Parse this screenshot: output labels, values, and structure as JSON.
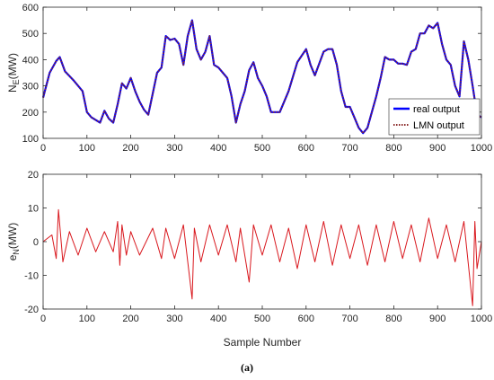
{
  "chart_data": [
    {
      "type": "line",
      "ylabel_main": "N",
      "ylabel_sub": "E",
      "ylabel_unit": "(MW)",
      "xlim": [
        0,
        1000
      ],
      "ylim": [
        100,
        600
      ],
      "xticks": [
        0,
        100,
        200,
        300,
        400,
        500,
        600,
        700,
        800,
        900,
        1000
      ],
      "yticks": [
        100,
        200,
        300,
        400,
        500,
        600
      ],
      "grid": false,
      "legend_position": "bottom-right",
      "series": [
        {
          "name": "real output",
          "color": "#0000ff",
          "style": "solid",
          "x": [
            0,
            15,
            30,
            38,
            50,
            70,
            90,
            100,
            110,
            120,
            130,
            140,
            150,
            160,
            170,
            180,
            190,
            200,
            210,
            220,
            230,
            240,
            250,
            260,
            270,
            280,
            290,
            300,
            310,
            320,
            330,
            340,
            350,
            360,
            370,
            380,
            390,
            400,
            410,
            420,
            430,
            440,
            450,
            460,
            470,
            480,
            490,
            500,
            510,
            520,
            540,
            560,
            580,
            600,
            610,
            620,
            640,
            650,
            660,
            670,
            680,
            690,
            700,
            710,
            720,
            730,
            740,
            750,
            760,
            770,
            780,
            790,
            800,
            810,
            820,
            830,
            840,
            850,
            860,
            870,
            880,
            890,
            900,
            910,
            920,
            930,
            940,
            950,
            960,
            970,
            980,
            990,
            1000
          ],
          "y": [
            255,
            350,
            395,
            410,
            355,
            320,
            280,
            200,
            180,
            170,
            160,
            205,
            175,
            160,
            230,
            310,
            290,
            330,
            280,
            240,
            210,
            190,
            270,
            350,
            370,
            490,
            475,
            480,
            460,
            380,
            490,
            550,
            440,
            400,
            430,
            490,
            380,
            370,
            350,
            330,
            260,
            160,
            230,
            280,
            360,
            390,
            330,
            300,
            260,
            200,
            200,
            280,
            390,
            440,
            380,
            340,
            430,
            440,
            440,
            380,
            280,
            220,
            220,
            180,
            140,
            120,
            140,
            200,
            260,
            330,
            410,
            400,
            400,
            385,
            385,
            380,
            430,
            440,
            500,
            500,
            530,
            520,
            540,
            460,
            400,
            380,
            300,
            260,
            470,
            400,
            300,
            190,
            180
          ]
        },
        {
          "name": "LMN output",
          "color": "#8b2a2a",
          "style": "dotted",
          "x": [
            0,
            15,
            30,
            38,
            50,
            70,
            90,
            100,
            110,
            120,
            130,
            140,
            150,
            160,
            170,
            180,
            190,
            200,
            210,
            220,
            230,
            240,
            250,
            260,
            270,
            280,
            290,
            300,
            310,
            320,
            330,
            340,
            350,
            360,
            370,
            380,
            390,
            400,
            410,
            420,
            430,
            440,
            450,
            460,
            470,
            480,
            490,
            500,
            510,
            520,
            540,
            560,
            580,
            600,
            610,
            620,
            640,
            650,
            660,
            670,
            680,
            690,
            700,
            710,
            720,
            730,
            740,
            750,
            760,
            770,
            780,
            790,
            800,
            810,
            820,
            830,
            840,
            850,
            860,
            870,
            880,
            890,
            900,
            910,
            920,
            930,
            940,
            950,
            960,
            970,
            980,
            990,
            1000
          ],
          "y": [
            255,
            350,
            395,
            410,
            355,
            320,
            280,
            200,
            180,
            170,
            160,
            205,
            175,
            160,
            230,
            310,
            290,
            330,
            280,
            240,
            210,
            190,
            270,
            350,
            370,
            490,
            475,
            480,
            460,
            380,
            490,
            550,
            440,
            400,
            430,
            490,
            380,
            370,
            350,
            330,
            260,
            160,
            230,
            280,
            360,
            390,
            330,
            300,
            260,
            200,
            200,
            280,
            390,
            440,
            380,
            340,
            430,
            440,
            440,
            380,
            280,
            220,
            220,
            180,
            140,
            120,
            140,
            200,
            260,
            330,
            410,
            400,
            400,
            385,
            385,
            380,
            430,
            440,
            500,
            500,
            530,
            520,
            540,
            460,
            400,
            380,
            300,
            260,
            470,
            400,
            300,
            190,
            180
          ]
        }
      ]
    },
    {
      "type": "line",
      "ylabel_main": "e",
      "ylabel_sub": "N",
      "ylabel_unit": "(MW)",
      "xlabel": "Sample Number",
      "xlim": [
        0,
        1000
      ],
      "ylim": [
        -20,
        20
      ],
      "xticks": [
        0,
        100,
        200,
        300,
        400,
        500,
        600,
        700,
        800,
        900,
        1000
      ],
      "yticks": [
        -20,
        -10,
        0,
        10,
        20
      ],
      "grid": false,
      "series": [
        {
          "name": "",
          "color": "#d9181e",
          "style": "solid",
          "x": [
            0,
            20,
            30,
            35,
            45,
            60,
            80,
            100,
            120,
            140,
            160,
            170,
            175,
            180,
            190,
            200,
            220,
            250,
            270,
            280,
            300,
            320,
            340,
            345,
            360,
            380,
            400,
            420,
            440,
            450,
            470,
            480,
            500,
            520,
            540,
            560,
            580,
            600,
            620,
            640,
            660,
            680,
            700,
            720,
            740,
            760,
            780,
            800,
            820,
            840,
            860,
            880,
            900,
            920,
            940,
            960,
            980,
            985,
            990,
            1000
          ],
          "y": [
            0,
            2,
            -5,
            9.5,
            -6,
            3,
            -4,
            4,
            -3,
            3,
            -3,
            6,
            -7,
            5,
            -4,
            3,
            -4,
            4,
            -5,
            4,
            -5,
            5,
            -17,
            4,
            -6,
            5,
            -4,
            5,
            -6,
            4,
            -12,
            5,
            -4,
            5,
            -6,
            4,
            -8,
            5,
            -6,
            6,
            -7,
            5,
            -5,
            5,
            -7,
            5,
            -6,
            6,
            -5,
            5,
            -6,
            7,
            -5,
            5,
            -6,
            6,
            -19,
            6,
            -8,
            0
          ]
        }
      ]
    }
  ],
  "legend": {
    "real_output": "real output",
    "lmn_output": "LMN output"
  },
  "caption": "(a)"
}
